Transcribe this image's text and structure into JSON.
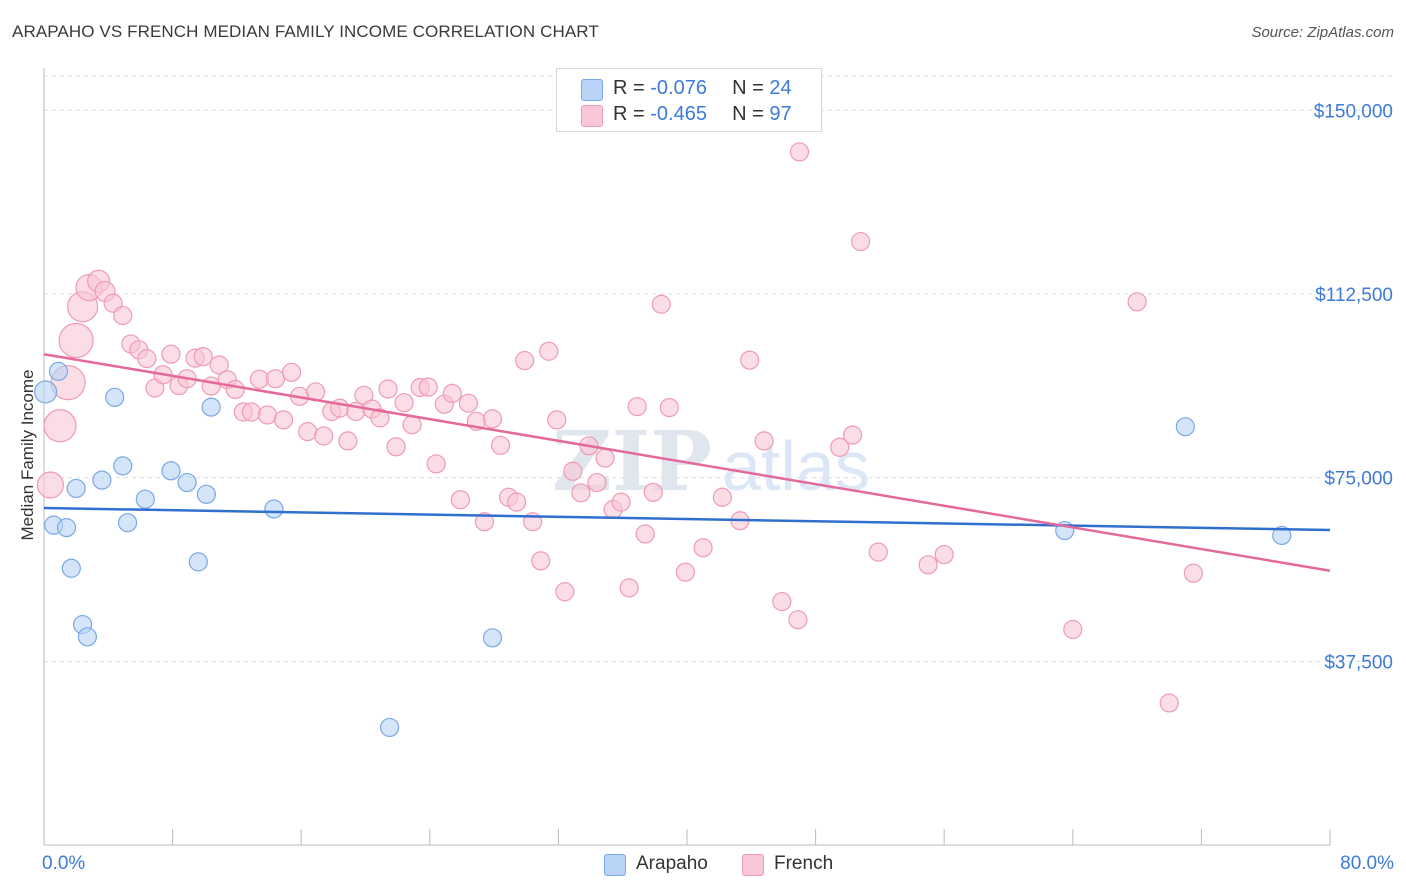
{
  "title": "ARAPAHO VS FRENCH MEDIAN FAMILY INCOME CORRELATION CHART",
  "source": "Source: ZipAtlas.com",
  "legend": {
    "arapaho": {
      "r_label": "R =",
      "r_value": "-0.076",
      "n_label": "N =",
      "n_value": "24"
    },
    "french": {
      "r_label": "R =",
      "r_value": "-0.465",
      "n_label": "N =",
      "n_value": "97"
    }
  },
  "bottom_legend": {
    "arapaho": "Arapaho",
    "french": "French"
  },
  "colors": {
    "arapaho_fill": "#b8d3f5",
    "arapaho_stroke": "#7aa8e6",
    "arapaho_line": "#2f6fcf",
    "french_fill": "#f9c6d6",
    "french_stroke": "#ef9ab6",
    "french_line": "#e4699a",
    "tick_label": "#3d7bd9",
    "grid": "#dddddd"
  },
  "watermark": {
    "zip": "ZIP",
    "atlas": "atlas"
  },
  "chart_data": {
    "type": "scatter",
    "title": "ARAPAHO VS FRENCH MEDIAN FAMILY INCOME CORRELATION CHART",
    "xlabel": "",
    "ylabel": "Median Family Income",
    "xlim": [
      0,
      80
    ],
    "ylim": [
      0,
      157000
    ],
    "x_tick_labels": [
      "0.0%",
      "80.0%"
    ],
    "y_ticks": [
      37500,
      75000,
      112500,
      150000
    ],
    "y_tick_labels": [
      "$37,500",
      "$75,000",
      "$112,500",
      "$150,000"
    ],
    "grid": true,
    "legend_position": "top-center",
    "series": [
      {
        "name": "Arapaho",
        "r": -0.076,
        "n": 24,
        "trend": {
          "x": [
            0,
            80
          ],
          "y": [
            68800,
            64300
          ]
        },
        "points": [
          {
            "x": 0.1,
            "y": 92500,
            "s": 11
          },
          {
            "x": 0.6,
            "y": 65300,
            "s": 9
          },
          {
            "x": 0.9,
            "y": 96700,
            "s": 9
          },
          {
            "x": 1.4,
            "y": 64800,
            "s": 9
          },
          {
            "x": 1.7,
            "y": 56500,
            "s": 9
          },
          {
            "x": 2.0,
            "y": 72800,
            "s": 9
          },
          {
            "x": 2.4,
            "y": 45000,
            "s": 9
          },
          {
            "x": 2.7,
            "y": 42500,
            "s": 9
          },
          {
            "x": 3.6,
            "y": 74500,
            "s": 9
          },
          {
            "x": 4.4,
            "y": 91400,
            "s": 9
          },
          {
            "x": 4.9,
            "y": 77400,
            "s": 9
          },
          {
            "x": 5.2,
            "y": 65800,
            "s": 9
          },
          {
            "x": 6.3,
            "y": 70600,
            "s": 9
          },
          {
            "x": 7.9,
            "y": 76400,
            "s": 9
          },
          {
            "x": 8.9,
            "y": 74000,
            "s": 9
          },
          {
            "x": 9.6,
            "y": 57800,
            "s": 9
          },
          {
            "x": 10.1,
            "y": 71600,
            "s": 9
          },
          {
            "x": 10.4,
            "y": 89400,
            "s": 9
          },
          {
            "x": 14.3,
            "y": 68600,
            "s": 9
          },
          {
            "x": 21.5,
            "y": 24000,
            "s": 9
          },
          {
            "x": 27.9,
            "y": 42300,
            "s": 9
          },
          {
            "x": 63.5,
            "y": 64200,
            "s": 9
          },
          {
            "x": 71.0,
            "y": 85400,
            "s": 9
          },
          {
            "x": 77.0,
            "y": 63200,
            "s": 9
          }
        ]
      },
      {
        "name": "French",
        "r": -0.465,
        "n": 97,
        "trend": {
          "x": [
            0,
            80
          ],
          "y": [
            100200,
            56000
          ]
        },
        "points": [
          {
            "x": 0.4,
            "y": 73500,
            "s": 13
          },
          {
            "x": 1.0,
            "y": 85600,
            "s": 16
          },
          {
            "x": 1.5,
            "y": 94400,
            "s": 17
          },
          {
            "x": 2.0,
            "y": 103000,
            "s": 17
          },
          {
            "x": 2.4,
            "y": 109900,
            "s": 15
          },
          {
            "x": 2.8,
            "y": 113800,
            "s": 13
          },
          {
            "x": 3.4,
            "y": 115100,
            "s": 11
          },
          {
            "x": 3.8,
            "y": 113000,
            "s": 10
          },
          {
            "x": 4.3,
            "y": 110600,
            "s": 9
          },
          {
            "x": 4.9,
            "y": 108100,
            "s": 9
          },
          {
            "x": 5.4,
            "y": 102300,
            "s": 9
          },
          {
            "x": 5.9,
            "y": 101100,
            "s": 9
          },
          {
            "x": 6.4,
            "y": 99300,
            "s": 9
          },
          {
            "x": 6.9,
            "y": 93300,
            "s": 9
          },
          {
            "x": 7.4,
            "y": 96000,
            "s": 9
          },
          {
            "x": 7.9,
            "y": 100200,
            "s": 9
          },
          {
            "x": 8.4,
            "y": 93800,
            "s": 9
          },
          {
            "x": 8.9,
            "y": 95200,
            "s": 9
          },
          {
            "x": 9.4,
            "y": 99400,
            "s": 9
          },
          {
            "x": 9.9,
            "y": 99700,
            "s": 9
          },
          {
            "x": 10.4,
            "y": 93700,
            "s": 9
          },
          {
            "x": 10.9,
            "y": 98000,
            "s": 9
          },
          {
            "x": 11.4,
            "y": 95000,
            "s": 9
          },
          {
            "x": 11.9,
            "y": 93000,
            "s": 9
          },
          {
            "x": 12.4,
            "y": 88400,
            "s": 9
          },
          {
            "x": 12.9,
            "y": 88400,
            "s": 9
          },
          {
            "x": 13.4,
            "y": 95100,
            "s": 9
          },
          {
            "x": 13.9,
            "y": 87800,
            "s": 9
          },
          {
            "x": 14.4,
            "y": 95200,
            "s": 9
          },
          {
            "x": 14.9,
            "y": 86800,
            "s": 9
          },
          {
            "x": 15.4,
            "y": 96500,
            "s": 9
          },
          {
            "x": 15.9,
            "y": 91600,
            "s": 9
          },
          {
            "x": 16.4,
            "y": 84400,
            "s": 9
          },
          {
            "x": 16.9,
            "y": 92500,
            "s": 9
          },
          {
            "x": 17.4,
            "y": 83500,
            "s": 9
          },
          {
            "x": 17.9,
            "y": 88500,
            "s": 9
          },
          {
            "x": 18.4,
            "y": 89200,
            "s": 9
          },
          {
            "x": 18.9,
            "y": 82500,
            "s": 9
          },
          {
            "x": 19.4,
            "y": 88500,
            "s": 9
          },
          {
            "x": 19.9,
            "y": 91800,
            "s": 9
          },
          {
            "x": 20.4,
            "y": 89000,
            "s": 9
          },
          {
            "x": 20.9,
            "y": 87200,
            "s": 9
          },
          {
            "x": 21.4,
            "y": 93100,
            "s": 9
          },
          {
            "x": 21.9,
            "y": 81300,
            "s": 9
          },
          {
            "x": 22.4,
            "y": 90300,
            "s": 9
          },
          {
            "x": 22.9,
            "y": 85800,
            "s": 9
          },
          {
            "x": 23.4,
            "y": 93400,
            "s": 9
          },
          {
            "x": 23.9,
            "y": 93500,
            "s": 9
          },
          {
            "x": 24.4,
            "y": 77800,
            "s": 9
          },
          {
            "x": 24.9,
            "y": 90000,
            "s": 9
          },
          {
            "x": 25.4,
            "y": 92200,
            "s": 9
          },
          {
            "x": 25.9,
            "y": 70500,
            "s": 9
          },
          {
            "x": 26.4,
            "y": 90200,
            "s": 9
          },
          {
            "x": 26.9,
            "y": 86500,
            "s": 9
          },
          {
            "x": 27.4,
            "y": 66000,
            "s": 9
          },
          {
            "x": 27.9,
            "y": 87000,
            "s": 9
          },
          {
            "x": 28.4,
            "y": 81600,
            "s": 9
          },
          {
            "x": 28.9,
            "y": 71000,
            "s": 9
          },
          {
            "x": 29.4,
            "y": 70000,
            "s": 9
          },
          {
            "x": 29.9,
            "y": 98900,
            "s": 9
          },
          {
            "x": 30.4,
            "y": 66000,
            "s": 9
          },
          {
            "x": 30.9,
            "y": 58000,
            "s": 9
          },
          {
            "x": 31.4,
            "y": 100800,
            "s": 9
          },
          {
            "x": 31.9,
            "y": 86800,
            "s": 9
          },
          {
            "x": 32.4,
            "y": 51700,
            "s": 9
          },
          {
            "x": 32.9,
            "y": 76300,
            "s": 9
          },
          {
            "x": 33.4,
            "y": 71900,
            "s": 9
          },
          {
            "x": 33.9,
            "y": 81500,
            "s": 9
          },
          {
            "x": 34.4,
            "y": 74000,
            "s": 9
          },
          {
            "x": 34.9,
            "y": 79000,
            "s": 9
          },
          {
            "x": 35.4,
            "y": 68500,
            "s": 9
          },
          {
            "x": 35.9,
            "y": 70000,
            "s": 9
          },
          {
            "x": 36.4,
            "y": 52500,
            "s": 9
          },
          {
            "x": 36.9,
            "y": 89500,
            "s": 9
          },
          {
            "x": 37.4,
            "y": 63500,
            "s": 9
          },
          {
            "x": 37.9,
            "y": 72000,
            "s": 9
          },
          {
            "x": 38.4,
            "y": 110400,
            "s": 9
          },
          {
            "x": 38.9,
            "y": 89300,
            "s": 9
          },
          {
            "x": 39.9,
            "y": 55700,
            "s": 9
          },
          {
            "x": 41.0,
            "y": 60700,
            "s": 9
          },
          {
            "x": 42.2,
            "y": 71000,
            "s": 9
          },
          {
            "x": 43.3,
            "y": 66200,
            "s": 9
          },
          {
            "x": 43.9,
            "y": 99000,
            "s": 9
          },
          {
            "x": 44.8,
            "y": 82500,
            "s": 9
          },
          {
            "x": 45.9,
            "y": 49700,
            "s": 9
          },
          {
            "x": 46.9,
            "y": 46000,
            "s": 9
          },
          {
            "x": 47.0,
            "y": 141500,
            "s": 9
          },
          {
            "x": 49.5,
            "y": 81200,
            "s": 9
          },
          {
            "x": 50.3,
            "y": 83700,
            "s": 9
          },
          {
            "x": 50.8,
            "y": 123200,
            "s": 9
          },
          {
            "x": 51.9,
            "y": 59800,
            "s": 9
          },
          {
            "x": 55.0,
            "y": 57200,
            "s": 9
          },
          {
            "x": 56.0,
            "y": 59300,
            "s": 9
          },
          {
            "x": 64.0,
            "y": 44000,
            "s": 9
          },
          {
            "x": 68.0,
            "y": 110900,
            "s": 9
          },
          {
            "x": 70.0,
            "y": 29000,
            "s": 9
          },
          {
            "x": 71.5,
            "y": 55500,
            "s": 9
          }
        ]
      }
    ]
  }
}
